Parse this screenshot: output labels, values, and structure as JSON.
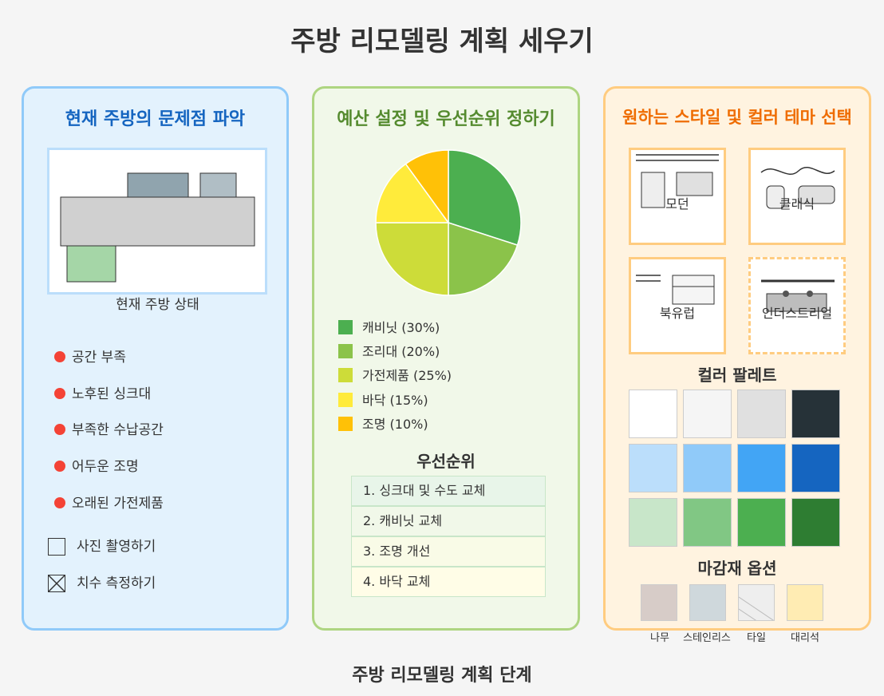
{
  "title": "주방 리모델링 계획 세우기",
  "footer": "주방 리모델링 계획 단계",
  "panel1": {
    "title": "현재 주방의 문제점 파악",
    "image_caption": "현재 주방 상태",
    "issues": [
      "공간 부족",
      "노후된 싱크대",
      "부족한 수납공간",
      "어두운 조명",
      "오래된 가전제품"
    ],
    "checklist": [
      {
        "label": "사진 촬영하기",
        "checked": false
      },
      {
        "label": "치수 측정하기",
        "checked": true
      }
    ]
  },
  "panel2": {
    "title": "예산 설정 및 우선순위 정하기",
    "legend": [
      "캐비닛 (30%)",
      "조리대 (20%)",
      "가전제품 (25%)",
      "바닥 (15%)",
      "조명 (10%)"
    ],
    "priority_title": "우선순위",
    "priorities": [
      "1. 싱크대 및 수도 교체",
      "2. 캐비닛 교체",
      "3. 조명 개선",
      "4. 바닥 교체"
    ]
  },
  "panel3": {
    "title": "원하는 스타일 및 컬러 테마 선택",
    "styles": [
      "모던",
      "클래식",
      "북유럽",
      "인더스트리얼"
    ],
    "palette_title": "컬러 팔레트",
    "palette": [
      "#ffffff",
      "#f5f5f5",
      "#e0e0e0",
      "#263238",
      "#bbdefb",
      "#90caf9",
      "#42a5f5",
      "#1565c0",
      "#c8e6c9",
      "#81c784",
      "#4caf50",
      "#2e7d32"
    ],
    "materials_title": "마감재 옵션",
    "materials": [
      "나무",
      "스테인리스",
      "타일",
      "대리석"
    ]
  },
  "chart_data": {
    "type": "pie",
    "categories": [
      "캐비닛",
      "조리대",
      "가전제품",
      "바닥",
      "조명"
    ],
    "values": [
      30,
      20,
      25,
      15,
      10
    ],
    "colors": [
      "#4caf50",
      "#8bc34a",
      "#cddc39",
      "#ffeb3b",
      "#ffc107"
    ]
  }
}
